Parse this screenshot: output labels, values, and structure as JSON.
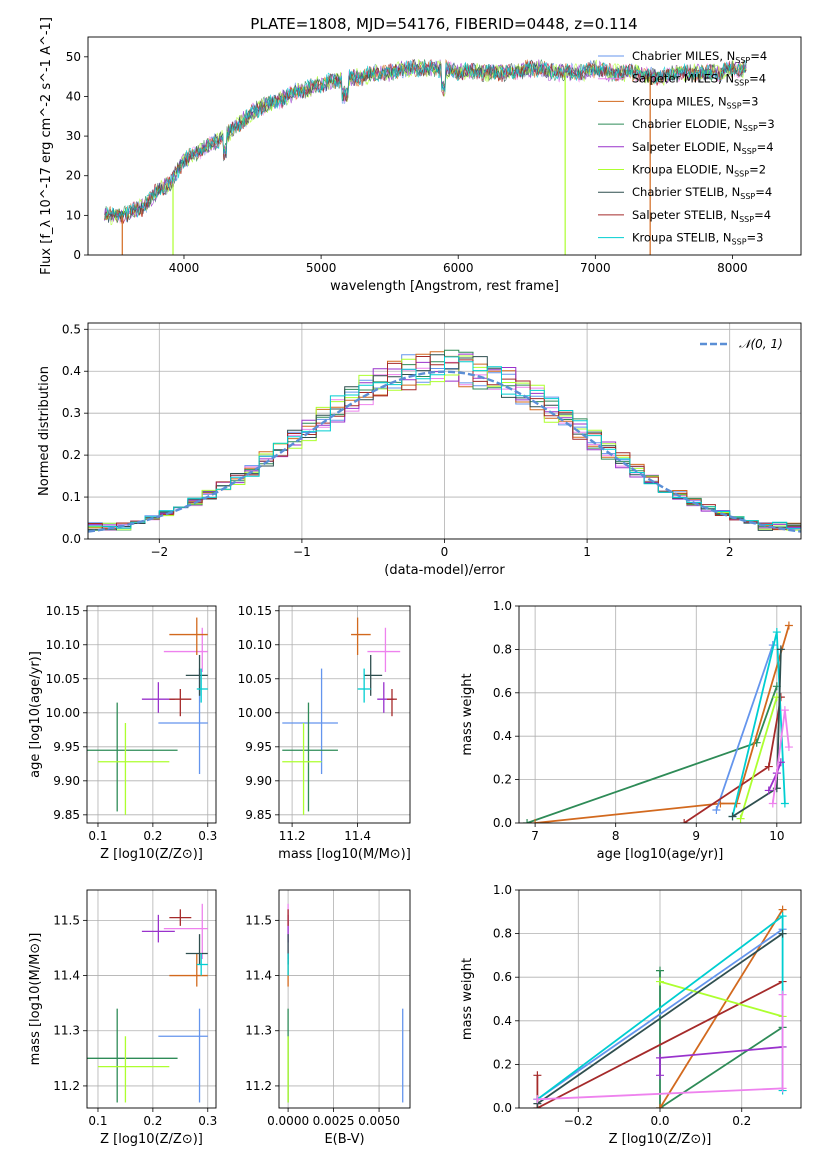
{
  "figure": {
    "title": "PLATE=1808, MJD=54176, FIBERID=0448, z=0.114"
  },
  "colors": {
    "Chabrier MILES": "#6495ED",
    "Salpeter MILES": "#EE82EE",
    "Kroupa MILES": "#D2691E",
    "Chabrier ELODIE": "#2E8B57",
    "Salpeter ELODIE": "#9932CC",
    "Kroupa ELODIE": "#ADFF2F",
    "Chabrier STELIB": "#2F4F4F",
    "Salpeter STELIB": "#A52A2A",
    "Kroupa STELIB": "#00CED1",
    "gaussian": "#5B8FD6"
  },
  "chart_data": [
    {
      "id": "spectrum",
      "type": "line",
      "xlabel": "wavelength [Angstrom, rest frame]",
      "ylabel": "Flux [f_λ 10^-17 erg cm^-2 s^-1 A^-1]",
      "xlim": [
        3300,
        8500
      ],
      "ylim": [
        0,
        55
      ],
      "xticks": [
        4000,
        5000,
        6000,
        7000,
        8000
      ],
      "yticks": [
        0,
        10,
        20,
        30,
        40,
        50
      ],
      "grid": false,
      "legend_position": "top-right",
      "continuum": {
        "x": [
          3420,
          3550,
          3700,
          3800,
          3900,
          4000,
          4100,
          4200,
          4300,
          4400,
          4500,
          4600,
          4700,
          4800,
          4900,
          5000,
          5100,
          5200,
          5300,
          5400,
          5500,
          5600,
          5700,
          5800,
          5900,
          6000,
          6100,
          6200,
          6300,
          6400,
          6500,
          6600,
          6700,
          6800,
          6900,
          7000,
          7100,
          7200,
          7300,
          7400,
          7500,
          7600,
          7700,
          7800,
          7900,
          8000,
          8100
        ],
        "y": [
          10,
          10,
          12,
          16,
          18,
          24,
          26,
          28,
          30,
          33,
          36,
          38,
          39,
          41,
          42,
          43,
          44,
          44.5,
          45,
          46,
          46,
          47,
          47,
          47,
          47,
          46,
          46.5,
          46,
          46,
          46,
          47,
          47,
          46,
          46,
          46,
          47,
          46,
          46,
          46,
          45,
          45,
          46,
          46,
          46,
          46,
          47,
          47
        ]
      },
      "dips": [
        {
          "series": "Kroupa MILES",
          "x": 3550,
          "from": 10,
          "to": 0
        },
        {
          "series": "Kroupa ELODIE",
          "x": 3920,
          "from": 18,
          "to": 0
        },
        {
          "series": "Kroupa ELODIE",
          "x": 6780,
          "from": 46,
          "to": 0
        },
        {
          "series": "Kroupa MILES",
          "x": 7400,
          "from": 45,
          "to": 0
        }
      ],
      "series": [
        {
          "name": "Chabrier MILES, N_SSP=4",
          "color_key": "Chabrier MILES"
        },
        {
          "name": "Salpeter MILES, N_SSP=4",
          "color_key": "Salpeter MILES"
        },
        {
          "name": "Kroupa MILES, N_SSP=3",
          "color_key": "Kroupa MILES"
        },
        {
          "name": "Chabrier ELODIE, N_SSP=3",
          "color_key": "Chabrier ELODIE"
        },
        {
          "name": "Salpeter ELODIE, N_SSP=4",
          "color_key": "Salpeter ELODIE"
        },
        {
          "name": "Kroupa ELODIE, N_SSP=2",
          "color_key": "Kroupa ELODIE"
        },
        {
          "name": "Chabrier STELIB, N_SSP=4",
          "color_key": "Chabrier STELIB"
        },
        {
          "name": "Salpeter STELIB, N_SSP=4",
          "color_key": "Salpeter STELIB"
        },
        {
          "name": "Kroupa STELIB, N_SSP=3",
          "color_key": "Kroupa STELIB"
        }
      ]
    },
    {
      "id": "residuals",
      "type": "step",
      "xlabel": "(data-model)/error",
      "ylabel": "Normed distribution",
      "xlim": [
        -2.5,
        2.5
      ],
      "ylim": [
        0,
        0.515
      ],
      "xticks": [
        -2,
        -1,
        0,
        1,
        2
      ],
      "yticks": [
        0,
        0.1,
        0.2,
        0.3,
        0.4,
        0.5
      ],
      "grid": true,
      "legend_position": "top-right",
      "legend": "𝒩(0, 1)",
      "gaussian": {
        "mu": 0,
        "sigma": 1
      },
      "bin_width": 0.1
    },
    {
      "id": "Z-age",
      "type": "errorbar",
      "xlabel": "Z [log10(Z/Z⊙)]",
      "ylabel": "age [log10(age/yr)]",
      "xlim": [
        0.08,
        0.315
      ],
      "ylim": [
        9.838,
        10.157
      ],
      "xticks": [
        0.1,
        0.2,
        0.3
      ],
      "yticks": [
        9.85,
        9.9,
        9.95,
        10.0,
        10.05,
        10.1,
        10.15
      ],
      "grid": true
    },
    {
      "id": "mass-age",
      "type": "errorbar",
      "xlabel": "mass [log10(M/M⊙)]",
      "ylabel": "",
      "xlim": [
        11.16,
        11.56
      ],
      "ylim": [
        9.838,
        10.157
      ],
      "xticks": [
        11.2,
        11.4
      ],
      "yticks": [
        9.85,
        9.9,
        9.95,
        10.0,
        10.05,
        10.1,
        10.15
      ],
      "grid": true
    },
    {
      "id": "age-weight",
      "type": "line",
      "xlabel": "age [log10(age/yr)]",
      "ylabel": "mass weight",
      "xlim": [
        6.8,
        10.3
      ],
      "ylim": [
        0,
        1
      ],
      "xticks": [
        7,
        8,
        9,
        10
      ],
      "yticks": [
        0,
        0.2,
        0.4,
        0.6,
        0.8,
        1.0
      ],
      "grid": true,
      "series": [
        {
          "color_key": "Chabrier ELODIE",
          "x": [
            6.9,
            9.75,
            10.0
          ],
          "y": [
            0.0,
            0.37,
            0.63
          ]
        },
        {
          "color_key": "Kroupa MILES",
          "x": [
            7.0,
            9.3,
            9.5,
            10.15
          ],
          "y": [
            0.0,
            0.09,
            0.09,
            0.91
          ]
        },
        {
          "color_key": "Chabrier MILES",
          "x": [
            9.25,
            9.95
          ],
          "y": [
            0.06,
            0.82
          ]
        },
        {
          "color_key": "Salpeter STELIB",
          "x": [
            8.85,
            9.9,
            10.05
          ],
          "y": [
            0.0,
            0.26,
            0.58
          ]
        },
        {
          "color_key": "Kroupa ELODIE",
          "x": [
            9.55,
            10.0
          ],
          "y": [
            0.02,
            0.58
          ]
        },
        {
          "color_key": "Kroupa STELIB",
          "x": [
            9.45,
            10.0,
            10.1
          ],
          "y": [
            0.03,
            0.88,
            0.09
          ]
        },
        {
          "color_key": "Chabrier STELIB",
          "x": [
            9.45,
            10.0,
            10.05
          ],
          "y": [
            0.03,
            0.16,
            0.8
          ]
        },
        {
          "color_key": "Salpeter ELODIE",
          "x": [
            9.9,
            10.0,
            10.05
          ],
          "y": [
            0.15,
            0.23,
            0.28
          ]
        },
        {
          "color_key": "Salpeter MILES",
          "x": [
            9.95,
            10.1,
            10.15
          ],
          "y": [
            0.09,
            0.52,
            0.35
          ]
        }
      ]
    },
    {
      "id": "Z-mass",
      "type": "errorbar",
      "xlabel": "Z [log10(Z/Z⊙)]",
      "ylabel": "mass [log10(M/M⊙)]",
      "xlim": [
        0.08,
        0.315
      ],
      "ylim": [
        11.16,
        11.555
      ],
      "xticks": [
        0.1,
        0.2,
        0.3
      ],
      "yticks": [
        11.2,
        11.3,
        11.4,
        11.5
      ],
      "grid": true
    },
    {
      "id": "ebv-mass",
      "type": "errorbar",
      "xlabel": "E(B-V)",
      "ylabel": "",
      "xlim": [
        -0.0005,
        0.0067
      ],
      "ylim": [
        11.16,
        11.555
      ],
      "xticks": [
        0.0,
        0.0025,
        0.005
      ],
      "xtick_labels": [
        "0.0000",
        "0.0025",
        "0.0050"
      ],
      "yticks": [
        11.2,
        11.3,
        11.4,
        11.5
      ],
      "grid": true
    },
    {
      "id": "Z-weight",
      "type": "line",
      "xlabel": "Z [log10(Z/Z⊙)]",
      "ylabel": "mass weight",
      "xlim": [
        -0.345,
        0.345
      ],
      "ylim": [
        0,
        1
      ],
      "xticks": [
        -0.2,
        0.0,
        0.2
      ],
      "yticks": [
        0,
        0.2,
        0.4,
        0.6,
        0.8,
        1.0
      ],
      "grid": true,
      "series": [
        {
          "color_key": "Chabrier ELODIE",
          "x": [
            0.0,
            0.0,
            0.3
          ],
          "y": [
            0.63,
            0.0,
            0.37
          ]
        },
        {
          "color_key": "Kroupa MILES",
          "x": [
            0.0,
            0.3
          ],
          "y": [
            0.0,
            0.91
          ]
        },
        {
          "color_key": "Chabrier MILES",
          "x": [
            -0.3,
            0.3
          ],
          "y": [
            0.04,
            0.82
          ]
        },
        {
          "color_key": "Salpeter STELIB",
          "x": [
            -0.3,
            -0.3,
            0.3
          ],
          "y": [
            0.15,
            0.0,
            0.58
          ]
        },
        {
          "color_key": "Kroupa ELODIE",
          "x": [
            0.0,
            0.3
          ],
          "y": [
            0.58,
            0.42
          ]
        },
        {
          "color_key": "Kroupa STELIB",
          "x": [
            -0.3,
            0.3,
            0.3
          ],
          "y": [
            0.04,
            0.88,
            0.08
          ]
        },
        {
          "color_key": "Chabrier STELIB",
          "x": [
            -0.3,
            0.3
          ],
          "y": [
            0.02,
            0.8
          ]
        },
        {
          "color_key": "Salpeter ELODIE",
          "x": [
            0.0,
            0.0,
            0.3
          ],
          "y": [
            0.15,
            0.23,
            0.28
          ]
        },
        {
          "color_key": "Salpeter MILES",
          "x": [
            -0.3,
            0.3,
            0.3
          ],
          "y": [
            0.04,
            0.09,
            0.52
          ]
        }
      ]
    }
  ],
  "fits": [
    {
      "name": "Chabrier MILES",
      "Z": 0.285,
      "Zlo": 0.21,
      "Zhi": 0.3,
      "age": 9.985,
      "agelo": 9.91,
      "agehi": 10.065,
      "mass": 11.29,
      "masslo": 11.17,
      "masshi": 11.34,
      "ebv": 0.0063,
      "ebvlo": 0.0063,
      "ebvhi": 0.0063
    },
    {
      "name": "Salpeter MILES",
      "Z": 0.29,
      "Zlo": 0.22,
      "Zhi": 0.3,
      "age": 10.09,
      "agelo": 10.06,
      "agehi": 10.125,
      "mass": 11.485,
      "masslo": 11.43,
      "masshi": 11.53,
      "ebv": 0.0,
      "ebvlo": 0.0,
      "ebvhi": 0.0
    },
    {
      "name": "Kroupa MILES",
      "Z": 0.28,
      "Zlo": 0.23,
      "Zhi": 0.3,
      "age": 10.115,
      "agelo": 10.085,
      "agehi": 10.14,
      "mass": 11.4,
      "masslo": 11.38,
      "masshi": 11.44,
      "ebv": 0.0,
      "ebvlo": 0.0,
      "ebvhi": 0.0
    },
    {
      "name": "Chabrier ELODIE",
      "Z": 0.135,
      "Zlo": 0.08,
      "Zhi": 0.245,
      "age": 9.945,
      "agelo": 9.855,
      "agehi": 10.015,
      "mass": 11.25,
      "masslo": 11.17,
      "masshi": 11.34,
      "ebv": 0.0,
      "ebvlo": 0.0,
      "ebvhi": 0.0
    },
    {
      "name": "Salpeter ELODIE",
      "Z": 0.21,
      "Zlo": 0.18,
      "Zhi": 0.24,
      "age": 10.02,
      "agelo": 10.0,
      "agehi": 10.045,
      "mass": 11.48,
      "masslo": 11.46,
      "masshi": 11.51,
      "ebv": 0.0,
      "ebvlo": 0.0,
      "ebvhi": 0.0
    },
    {
      "name": "Kroupa ELODIE",
      "Z": 0.15,
      "Zlo": 0.1,
      "Zhi": 0.23,
      "age": 9.928,
      "agelo": 9.85,
      "agehi": 9.985,
      "mass": 11.235,
      "masslo": 11.17,
      "masshi": 11.29,
      "ebv": 0.0,
      "ebvlo": 0.0,
      "ebvhi": 0.0
    },
    {
      "name": "Chabrier STELIB",
      "Z": 0.285,
      "Zlo": 0.26,
      "Zhi": 0.3,
      "age": 10.055,
      "agelo": 10.025,
      "agehi": 10.085,
      "mass": 11.44,
      "masslo": 11.42,
      "masshi": 11.475,
      "ebv": 0.0,
      "ebvlo": 0.0,
      "ebvhi": 0.0
    },
    {
      "name": "Salpeter STELIB",
      "Z": 0.25,
      "Zlo": 0.23,
      "Zhi": 0.27,
      "age": 10.02,
      "agelo": 9.995,
      "agehi": 10.035,
      "mass": 11.505,
      "masslo": 11.49,
      "masshi": 11.52,
      "ebv": 0.0,
      "ebvlo": 0.0,
      "ebvhi": 0.0
    },
    {
      "name": "Kroupa STELIB",
      "Z": 0.288,
      "Zlo": 0.28,
      "Zhi": 0.3,
      "age": 10.035,
      "agelo": 10.015,
      "agehi": 10.065,
      "mass": 11.42,
      "masslo": 11.4,
      "masshi": 11.44,
      "ebv": 0.0,
      "ebvlo": 0.0,
      "ebvhi": 0.0
    }
  ]
}
